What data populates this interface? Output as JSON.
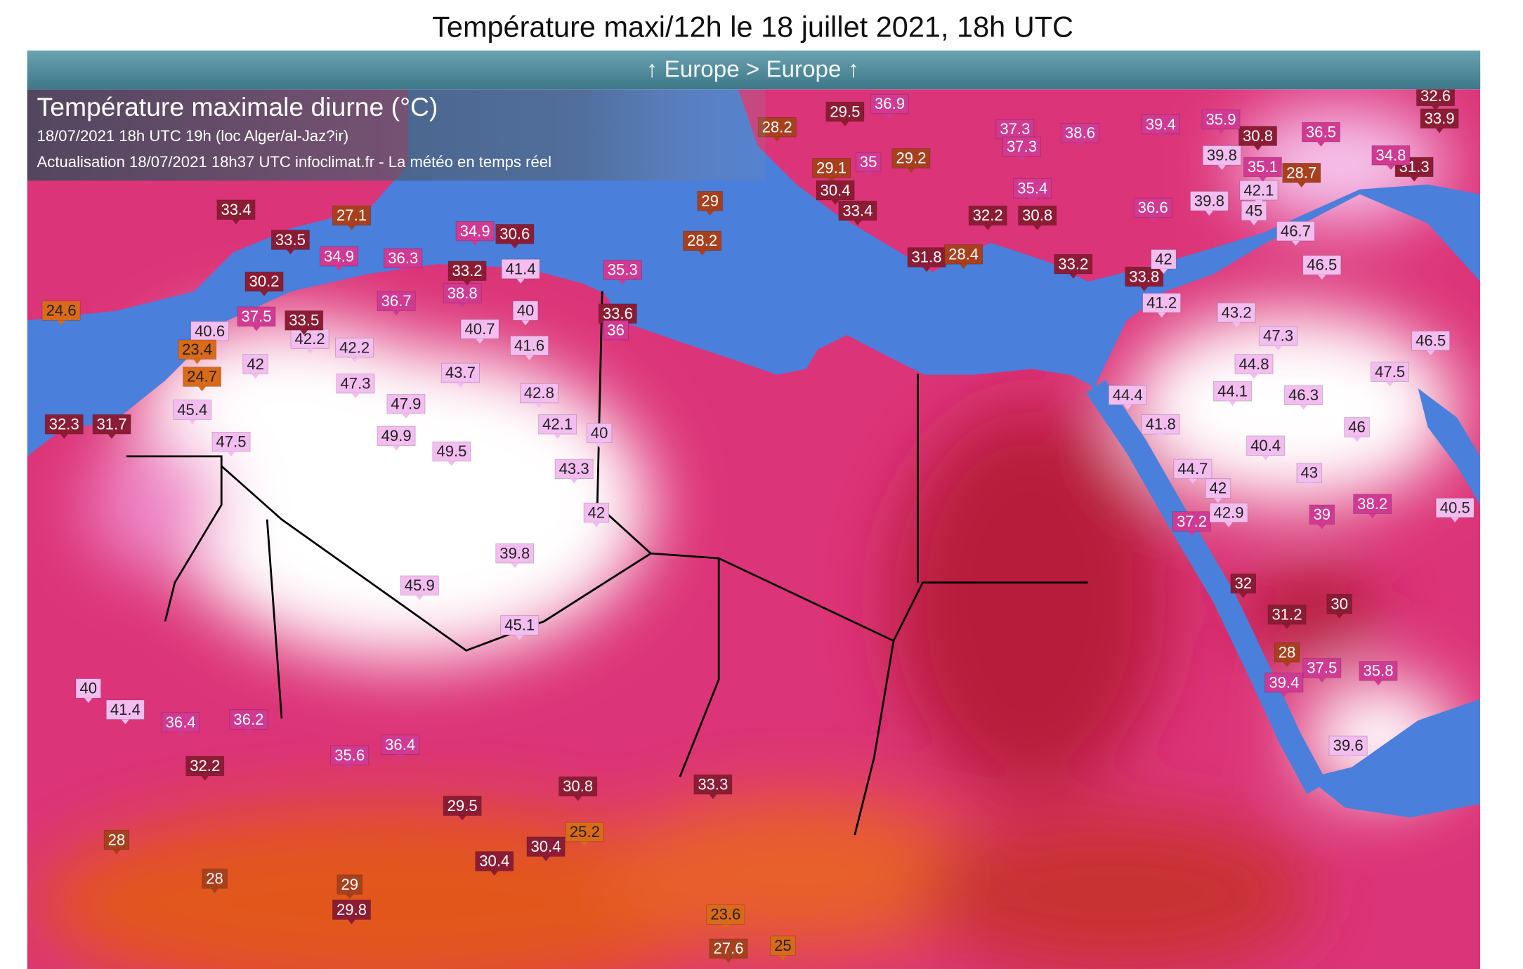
{
  "header": {
    "title": "Température maxi/12h le 18 juillet 2021, 18h UTC",
    "nav": "↑ Europe > Europe ↑"
  },
  "map": {
    "legend_title": "Température maximale diurne (°C)",
    "info_line": "18/07/2021   18h UTC  19h (loc Alger/al-Jaz?ir)",
    "update_line": "Actualisation 18/07/2021 18h37 UTC   infoclimat.fr - La météo en temps réel",
    "stations": [
      47.5,
      47.3,
      47.9,
      49.9,
      49.5,
      43.7,
      42.8,
      42.1,
      40,
      43.3,
      42,
      39.8,
      45.9,
      45.1,
      40.6,
      42,
      42.2,
      42.2,
      41.6,
      40.7,
      40,
      38.8,
      41.4,
      36.7,
      33.5,
      37.5,
      30.2,
      24.6,
      23.4,
      24.7,
      45.4,
      32.3,
      31.7,
      36.4,
      36.2,
      41.4,
      40,
      35.6,
      36.4,
      32.2,
      30.8,
      33.3,
      29.5,
      30.4,
      25.2,
      30.4,
      28,
      28,
      29,
      29.8,
      23.6,
      27.6,
      25,
      40.4,
      43,
      39,
      38.2,
      37.2,
      42.9,
      42,
      44.7,
      41.8,
      44.4,
      44.1,
      46.3,
      46,
      44.8,
      47.3,
      43.2,
      41.2,
      46.7,
      46.5,
      47.5,
      46.5,
      40.5,
      30,
      31.2,
      32,
      28,
      37.5,
      35.8,
      39.4,
      39.6,
      31.3,
      33.9,
      32.6,
      34.8,
      45,
      42.1,
      39.8,
      39.8,
      35.1,
      28.7,
      30.8,
      36.5,
      35.9,
      39.4,
      38.6,
      37.3,
      37.3,
      36.9,
      29.5,
      28.2,
      29.1,
      29.2,
      30.4,
      33.4,
      35.4,
      30.8,
      32.2,
      31.8,
      28.4,
      33.2,
      33.8,
      42,
      36.6,
      35,
      29,
      28.2,
      35.3,
      33.6,
      36,
      34.9,
      30.6,
      33.2,
      27.1,
      33.4,
      33.5,
      34.9,
      36.3
    ]
  }
}
